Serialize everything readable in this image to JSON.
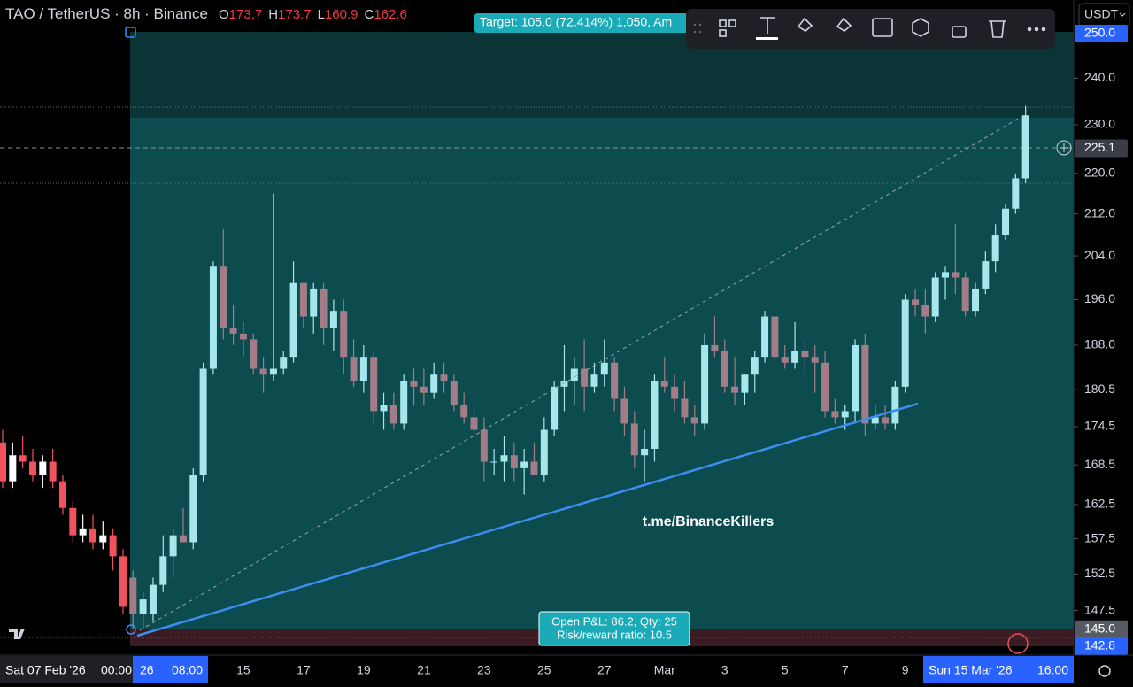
{
  "header": {
    "symbol": "TAO / TetherUS · 8h · Binance",
    "ohlc": [
      {
        "label": "O",
        "value": "173.7"
      },
      {
        "label": "H",
        "value": "173.7"
      },
      {
        "label": "L",
        "value": "160.9"
      },
      {
        "label": "C",
        "value": "162.6"
      }
    ]
  },
  "currency": "USDT",
  "target_label": "Target: 105.0 (72.414%) 1,050, Am",
  "position_box": [
    "Open P&L: 86.2, Qty: 25",
    "Risk/reward ratio: 10.5"
  ],
  "watermark": "t.me/BinanceKillers",
  "chart": {
    "type": "candlestick",
    "log": true,
    "ylim": [
      141.6,
      257.8
    ],
    "yticks": [
      {
        "value": 240,
        "label": "240.0"
      },
      {
        "value": 230,
        "label": "230.0"
      },
      {
        "value": 220,
        "label": "220.0"
      },
      {
        "value": 212,
        "label": "212.0"
      },
      {
        "value": 204,
        "label": "204.0"
      },
      {
        "value": 196,
        "label": "196.0"
      },
      {
        "value": 188,
        "label": "188.0"
      },
      {
        "value": 180.5,
        "label": "180.5"
      },
      {
        "value": 174.5,
        "label": "174.5"
      },
      {
        "value": 168.5,
        "label": "168.5"
      },
      {
        "value": 162.5,
        "label": "162.5"
      },
      {
        "value": 157.5,
        "label": "157.5"
      },
      {
        "value": 152.5,
        "label": "152.5"
      },
      {
        "value": 147.5,
        "label": "147.5"
      }
    ],
    "price_labels": [
      {
        "value": 250,
        "label": "250.0",
        "color": "#2962ff"
      },
      {
        "value": 225.1,
        "label": "225.1",
        "color": "#3a3d45"
      },
      {
        "value": 145,
        "label": "145.0",
        "color": "#555a63"
      },
      {
        "value": 142.8,
        "label": "142.8",
        "color": "#2962ff"
      }
    ],
    "x_labels": [
      "15",
      "17",
      "19",
      "21",
      "23",
      "25",
      "27",
      "Mar",
      "3",
      "5",
      "7",
      "9"
    ],
    "x_highlights": [
      {
        "date": "Sat 07 Feb '26",
        "time": "00:00"
      },
      {
        "date": "26",
        "time": "08:00"
      },
      {
        "date": "Sun 15 Mar '26",
        "time": "16:00"
      }
    ],
    "candles": [
      [
        172,
        174,
        165,
        166
      ],
      [
        166,
        172,
        165,
        170
      ],
      [
        170,
        173,
        168,
        169
      ],
      [
        169,
        171,
        166,
        167
      ],
      [
        167,
        170,
        165,
        169
      ],
      [
        169,
        171,
        165,
        166
      ],
      [
        166,
        167,
        161,
        162
      ],
      [
        162,
        163,
        157,
        158
      ],
      [
        158,
        161,
        157,
        159
      ],
      [
        159,
        161,
        156,
        157
      ],
      [
        157,
        160,
        156,
        158
      ],
      [
        158,
        159,
        153,
        155
      ],
      [
        155,
        156,
        147,
        148
      ],
      [
        152,
        153,
        145,
        147
      ],
      [
        147,
        150,
        145,
        149
      ],
      [
        147,
        152,
        146,
        151
      ],
      [
        151,
        158,
        150,
        155
      ],
      [
        155,
        159,
        152,
        158
      ],
      [
        158,
        162,
        157,
        157
      ],
      [
        157,
        168,
        156,
        167
      ],
      [
        167,
        185,
        166,
        184
      ],
      [
        184,
        203,
        183,
        202
      ],
      [
        202,
        209,
        189,
        191
      ],
      [
        191,
        195,
        188,
        190
      ],
      [
        190,
        192,
        186,
        189
      ],
      [
        189,
        190,
        183,
        184
      ],
      [
        184,
        186,
        180,
        183
      ],
      [
        183,
        216,
        182,
        184
      ],
      [
        184,
        187,
        183,
        186
      ],
      [
        186,
        203,
        185,
        199
      ],
      [
        199,
        199,
        191,
        193
      ],
      [
        193,
        199,
        190,
        198
      ],
      [
        198,
        199,
        188,
        191
      ],
      [
        191,
        196,
        187,
        194
      ],
      [
        194,
        196,
        183,
        186
      ],
      [
        186,
        189,
        181,
        182
      ],
      [
        182,
        188,
        180,
        186
      ],
      [
        186,
        187,
        175,
        177
      ],
      [
        177,
        180,
        174,
        178
      ],
      [
        178,
        180,
        174,
        175
      ],
      [
        175,
        183,
        174,
        182
      ],
      [
        182,
        184,
        178,
        181
      ],
      [
        181,
        184,
        178,
        180
      ],
      [
        180,
        185,
        179,
        183
      ],
      [
        183,
        185,
        180,
        182
      ],
      [
        182,
        183,
        177,
        178
      ],
      [
        178,
        180,
        175,
        176
      ],
      [
        176,
        178,
        173,
        174
      ],
      [
        174,
        176,
        166,
        169
      ],
      [
        169,
        171,
        167,
        169
      ],
      [
        169,
        173,
        166,
        170
      ],
      [
        170,
        172,
        166,
        168
      ],
      [
        168,
        171,
        164,
        169
      ],
      [
        169,
        172,
        167,
        167
      ],
      [
        167,
        176,
        166,
        174
      ],
      [
        174,
        182,
        173,
        181
      ],
      [
        181,
        188,
        177,
        182
      ],
      [
        182,
        186,
        178,
        184
      ],
      [
        184,
        189,
        177,
        181
      ],
      [
        181,
        185,
        180,
        183
      ],
      [
        183,
        189,
        181,
        185
      ],
      [
        185,
        186,
        177,
        179
      ],
      [
        179,
        181,
        173,
        175
      ],
      [
        175,
        177,
        168,
        170
      ],
      [
        170,
        174,
        166,
        171
      ],
      [
        171,
        183,
        169,
        182
      ],
      [
        182,
        186,
        180,
        181
      ],
      [
        181,
        183,
        177,
        179
      ],
      [
        179,
        182,
        175,
        176
      ],
      [
        176,
        178,
        173,
        175
      ],
      [
        175,
        190,
        174,
        188
      ],
      [
        188,
        193,
        186,
        187
      ],
      [
        187,
        189,
        180,
        181
      ],
      [
        181,
        186,
        178,
        180
      ],
      [
        180,
        183,
        178,
        183
      ],
      [
        183,
        187,
        180,
        186
      ],
      [
        186,
        194,
        185,
        193
      ],
      [
        193,
        193,
        185,
        186
      ],
      [
        186,
        188,
        184,
        185
      ],
      [
        185,
        192,
        184,
        187
      ],
      [
        187,
        189,
        183,
        186
      ],
      [
        186,
        188,
        180,
        185
      ],
      [
        185,
        187,
        176,
        177
      ],
      [
        177,
        179,
        175,
        176
      ],
      [
        176,
        178,
        174,
        177
      ],
      [
        177,
        189,
        175,
        188
      ],
      [
        188,
        190,
        173,
        175
      ],
      [
        175,
        178,
        174,
        176
      ],
      [
        176,
        178,
        174,
        175
      ],
      [
        175,
        182,
        174,
        181
      ],
      [
        181,
        197,
        180,
        196
      ],
      [
        196,
        198,
        193,
        195
      ],
      [
        195,
        198,
        190,
        193
      ],
      [
        193,
        201,
        192,
        200
      ],
      [
        200,
        202,
        196,
        201
      ],
      [
        201,
        210,
        197,
        200
      ],
      [
        200,
        201,
        193,
        194
      ],
      [
        194,
        199,
        193,
        198
      ],
      [
        198,
        205,
        197,
        203
      ],
      [
        203,
        210,
        201,
        208
      ],
      [
        208,
        214,
        207,
        213
      ],
      [
        213,
        220,
        212,
        219
      ],
      [
        219,
        234,
        218,
        232
      ]
    ]
  }
}
